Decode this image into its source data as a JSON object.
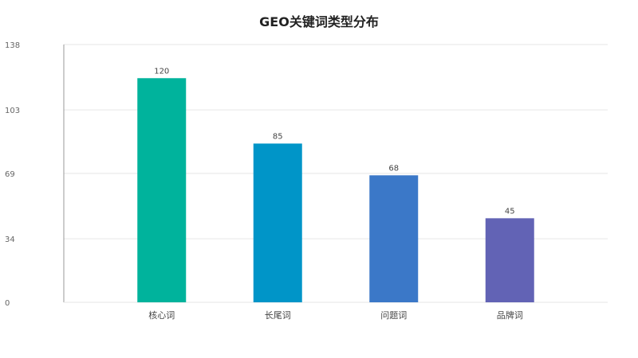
{
  "chart_data": {
    "type": "bar",
    "title": "GEO关键词类型分布",
    "xlabel": "",
    "ylabel": "",
    "categories": [
      "核心词",
      "长尾词",
      "问题词",
      "品牌词"
    ],
    "values": [
      120,
      85,
      68,
      45
    ],
    "bar_colors": [
      "#00b39c",
      "#0095c8",
      "#3b78c8",
      "#6263b5"
    ],
    "ylim": [
      0,
      138
    ],
    "y_ticks": [
      0,
      34,
      69,
      103,
      138
    ],
    "grid": true,
    "legend": "none",
    "data_labels": true
  },
  "colors": {
    "grid": "#e6e6e6",
    "axis": "#999999",
    "tick_text": "#666666",
    "label_text": "#444444"
  }
}
